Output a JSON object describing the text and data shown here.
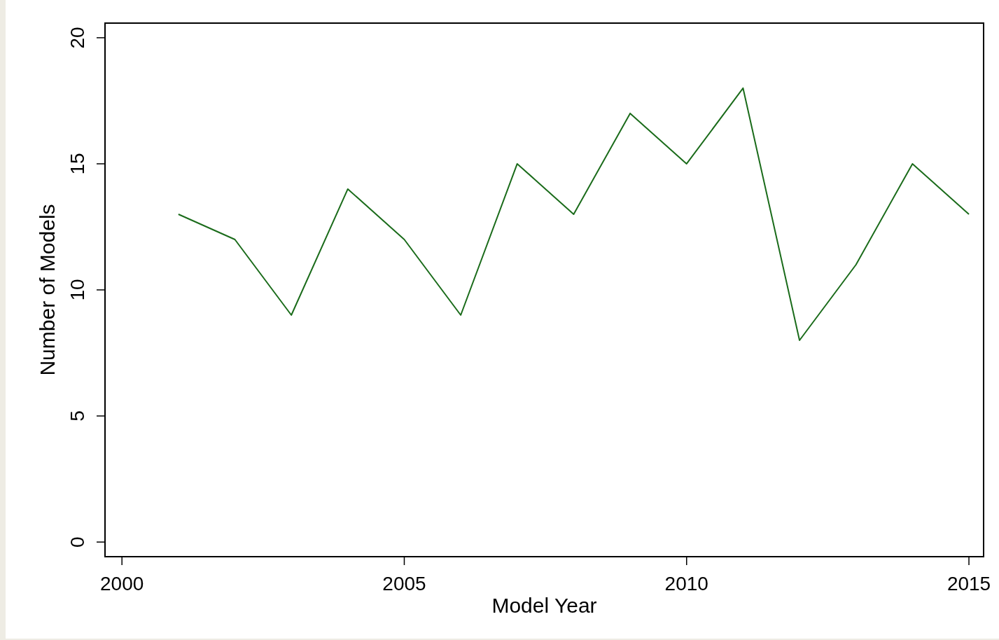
{
  "chart_data": {
    "type": "line",
    "xlabel": "Model Year",
    "ylabel": "Number of Models",
    "x": [
      2001,
      2002,
      2003,
      2004,
      2005,
      2006,
      2007,
      2008,
      2009,
      2010,
      2011,
      2012,
      2013,
      2014,
      2015
    ],
    "series": [
      {
        "color": "#1a6b1a",
        "values": [
          13,
          12,
          9,
          14,
          12,
          9,
          15,
          13,
          17,
          15,
          18,
          8,
          11,
          15,
          13
        ]
      }
    ],
    "xlim": [
      1999.7,
      2015.26
    ],
    "xticks": [
      2000,
      2005,
      2010,
      2015
    ],
    "ylim": [
      -0.58,
      20.58
    ],
    "yticks": [
      0,
      5,
      10,
      15,
      20
    ],
    "grid": false,
    "marker": "none",
    "line_style": "solid"
  }
}
